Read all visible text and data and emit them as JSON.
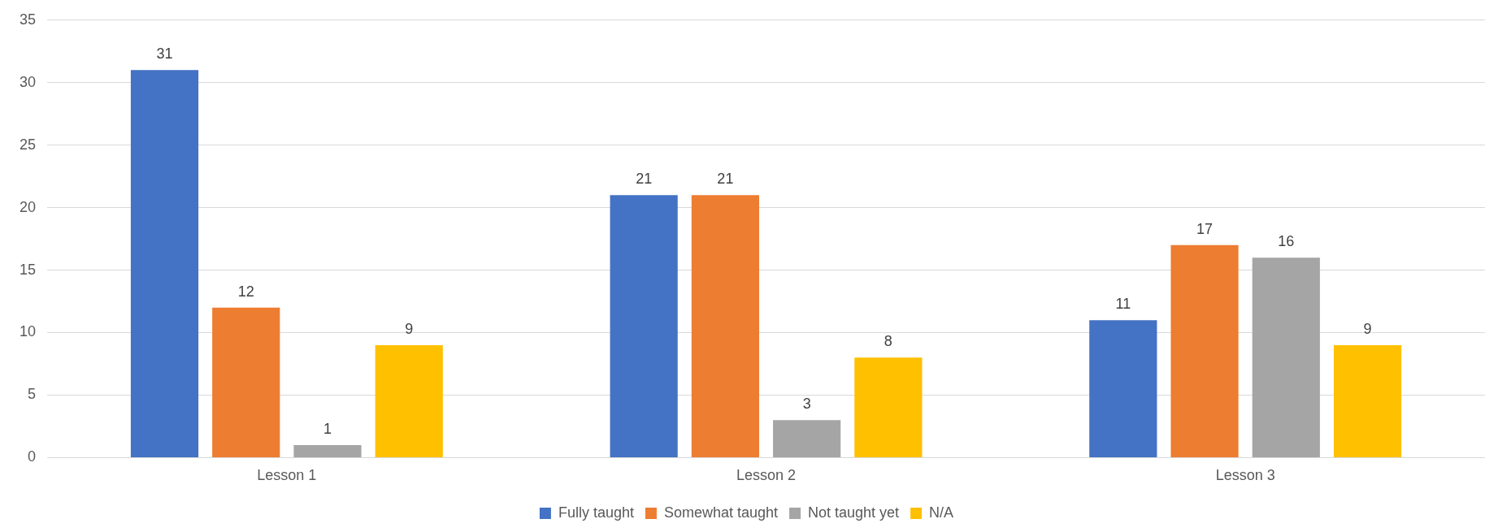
{
  "chart_data": {
    "type": "bar",
    "categories": [
      "Lesson 1",
      "Lesson 2",
      "Lesson 3"
    ],
    "series": [
      {
        "name": "Fully taught",
        "color": "#4472c4",
        "values": [
          31,
          21,
          11
        ]
      },
      {
        "name": "Somewhat taught",
        "color": "#ed7d31",
        "values": [
          12,
          21,
          17
        ]
      },
      {
        "name": "Not taught yet",
        "color": "#a5a5a5",
        "values": [
          1,
          3,
          16
        ]
      },
      {
        "name": "N/A",
        "color": "#ffc000",
        "values": [
          9,
          8,
          9
        ]
      }
    ],
    "ylim": [
      0,
      35
    ],
    "yticks": [
      0,
      5,
      10,
      15,
      20,
      25,
      30,
      35
    ],
    "grid": "y",
    "legend": "bottom",
    "data_labels": true
  }
}
